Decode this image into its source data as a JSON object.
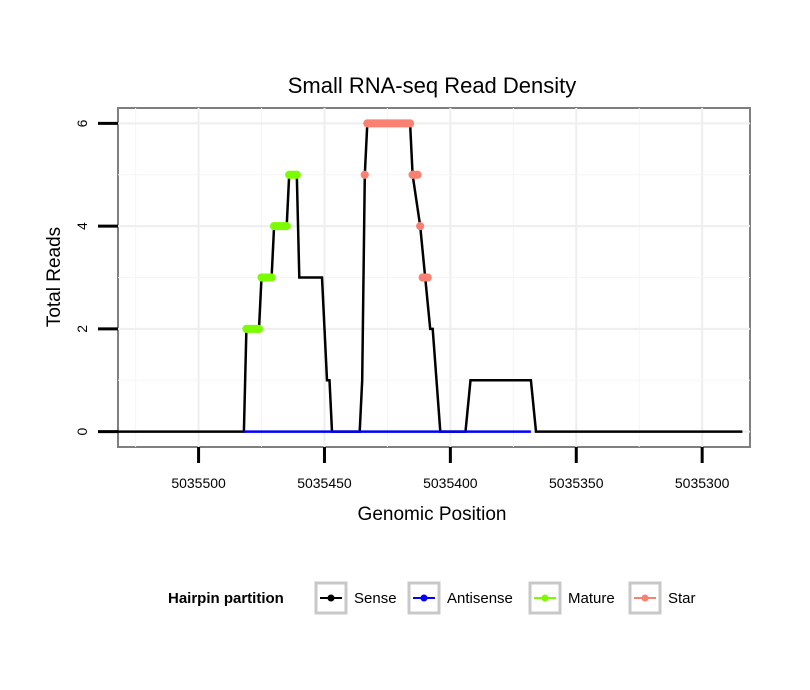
{
  "chart_data": {
    "type": "line",
    "title": "Small RNA-seq Read Density",
    "xlabel": "Genomic Position",
    "ylabel": "Total Reads",
    "x_reversed": true,
    "xlim": [
      5035532,
      5035281
    ],
    "ylim": [
      -0.3,
      6.3
    ],
    "x_ticks": [
      5035500,
      5035450,
      5035400,
      5035350,
      5035300
    ],
    "x_tick_labels": [
      "5035500",
      "5035450",
      "5035400",
      "5035350",
      "5035300"
    ],
    "y_ticks": [
      0,
      2,
      4,
      6
    ],
    "y_tick_labels": [
      "0",
      "2",
      "4",
      "6"
    ],
    "grid": true,
    "legend": {
      "title": "Hairpin partition",
      "position": "bottom",
      "entries": [
        {
          "label": "Sense",
          "color": "#000000"
        },
        {
          "label": "Antisense",
          "color": "#0000ff"
        },
        {
          "label": "Mature",
          "color": "#7cfc00"
        },
        {
          "label": "Star",
          "color": "#fa8072"
        }
      ]
    },
    "series": [
      {
        "name": "Sense",
        "color": "#000000",
        "points": [
          [
            5035533,
            0
          ],
          [
            5035482,
            0
          ],
          [
            5035481,
            2
          ],
          [
            5035476,
            2
          ],
          [
            5035475,
            3
          ],
          [
            5035471,
            3
          ],
          [
            5035470,
            4
          ],
          [
            5035465,
            4
          ],
          [
            5035464,
            5
          ],
          [
            5035461,
            5
          ],
          [
            5035460,
            3
          ],
          [
            5035451,
            3
          ],
          [
            5035449,
            1
          ],
          [
            5035448,
            1
          ],
          [
            5035447,
            0
          ],
          [
            5035436,
            0
          ],
          [
            5035435,
            1
          ],
          [
            5035434,
            5
          ],
          [
            5035433,
            6
          ],
          [
            5035416,
            6
          ],
          [
            5035415,
            5
          ],
          [
            5035412,
            4
          ],
          [
            5035410,
            3
          ],
          [
            5035408,
            2
          ],
          [
            5035407,
            2
          ],
          [
            5035404,
            0
          ],
          [
            5035394,
            0
          ],
          [
            5035392,
            1
          ],
          [
            5035368,
            1
          ],
          [
            5035366,
            0
          ],
          [
            5035284,
            0
          ]
        ]
      },
      {
        "name": "Antisense",
        "color": "#0000ff",
        "points": [
          [
            5035482,
            0
          ],
          [
            5035368,
            0
          ]
        ]
      },
      {
        "name": "Mature",
        "color": "#7cfc00",
        "segments": [
          [
            [
              5035481,
              2
            ],
            [
              5035476,
              2
            ]
          ],
          [
            [
              5035475,
              3
            ],
            [
              5035471,
              3
            ]
          ],
          [
            [
              5035470,
              4
            ],
            [
              5035465,
              4
            ]
          ],
          [
            [
              5035464,
              5
            ],
            [
              5035461,
              5
            ]
          ]
        ]
      },
      {
        "name": "Star",
        "color": "#fa8072",
        "segments": [
          [
            [
              5035434,
              5
            ],
            [
              5035434,
              5
            ]
          ],
          [
            [
              5035433,
              6
            ],
            [
              5035416,
              6
            ]
          ],
          [
            [
              5035415,
              5
            ],
            [
              5035413,
              5
            ]
          ],
          [
            [
              5035412,
              4
            ],
            [
              5035412,
              4
            ]
          ],
          [
            [
              5035411,
              3
            ],
            [
              5035409,
              3
            ]
          ]
        ]
      }
    ]
  }
}
